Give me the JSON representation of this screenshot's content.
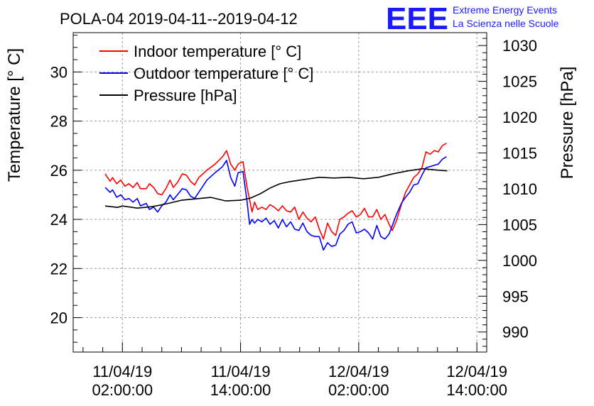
{
  "header": {
    "title": "POLA-04 2019-04-11--2019-04-12",
    "logo_text": "EEE",
    "logo_line1": "Extreme Energy Events",
    "logo_line2": "La Scienza nelle Scuole"
  },
  "colors": {
    "indoor": "#ff0000",
    "outdoor": "#0000ff",
    "pressure": "#000000",
    "logo": "#1a1aff"
  },
  "chart_data": {
    "type": "line",
    "title": "POLA-04 2019-04-11--2019-04-12",
    "ylabel": "Temperature [° C]",
    "y2label": "Pressure [hPa]",
    "xlabel": "",
    "grid": true,
    "legend_position": "top-left",
    "x_unit": "date-time",
    "xlim": [
      "2019-04-10 21:00",
      "2019-04-12 15:00"
    ],
    "ylim": [
      18.6,
      31.6
    ],
    "y2lim": [
      987.2,
      1031.8
    ],
    "y_ticks": [
      20,
      22,
      24,
      26,
      28,
      30
    ],
    "y2_ticks": [
      990,
      995,
      1000,
      1005,
      1010,
      1015,
      1020,
      1025,
      1030
    ],
    "x_ticks": [
      {
        "x": "2019-04-11 02:00",
        "line1": "11/04/19",
        "line2": "02:00:00"
      },
      {
        "x": "2019-04-11 14:00",
        "line1": "11/04/19",
        "line2": "14:00:00"
      },
      {
        "x": "2019-04-12 02:00",
        "line1": "12/04/19",
        "line2": "02:00:00"
      },
      {
        "x": "2019-04-12 14:00",
        "line1": "12/04/19",
        "line2": "14:00:00"
      }
    ],
    "series": [
      {
        "name": "Indoor temperature [° C]",
        "axis": "left",
        "color": "#ff0000",
        "points": [
          [
            "2019-04-11 00:15",
            25.85
          ],
          [
            "2019-04-11 00:45",
            25.55
          ],
          [
            "2019-04-11 01:00",
            25.7
          ],
          [
            "2019-04-11 01:25",
            25.45
          ],
          [
            "2019-04-11 01:50",
            25.6
          ],
          [
            "2019-04-11 02:15",
            25.35
          ],
          [
            "2019-04-11 02:40",
            25.45
          ],
          [
            "2019-04-11 03:05",
            25.3
          ],
          [
            "2019-04-11 03:30",
            25.5
          ],
          [
            "2019-04-11 03:50",
            25.25
          ],
          [
            "2019-04-11 04:25",
            25.25
          ],
          [
            "2019-04-11 04:45",
            25.45
          ],
          [
            "2019-04-11 05:10",
            25.3
          ],
          [
            "2019-04-11 05:35",
            25.05
          ],
          [
            "2019-04-11 06:00",
            25.0
          ],
          [
            "2019-04-11 06:25",
            25.25
          ],
          [
            "2019-04-11 06:50",
            25.6
          ],
          [
            "2019-04-11 07:10",
            25.3
          ],
          [
            "2019-04-11 07:35",
            25.5
          ],
          [
            "2019-04-11 08:05",
            25.85
          ],
          [
            "2019-04-11 08:30",
            25.8
          ],
          [
            "2019-04-11 08:55",
            25.55
          ],
          [
            "2019-04-11 09:20",
            25.4
          ],
          [
            "2019-04-11 09:45",
            25.7
          ],
          [
            "2019-04-11 10:10",
            25.85
          ],
          [
            "2019-04-11 10:35",
            26.0
          ],
          [
            "2019-04-11 11:25",
            26.25
          ],
          [
            "2019-04-11 12:10",
            26.55
          ],
          [
            "2019-04-11 12:35",
            26.8
          ],
          [
            "2019-04-11 13:00",
            26.25
          ],
          [
            "2019-04-11 13:25",
            26.0
          ],
          [
            "2019-04-11 13:45",
            26.25
          ],
          [
            "2019-04-11 14:15",
            26.35
          ],
          [
            "2019-04-11 14:40",
            25.3
          ],
          [
            "2019-04-11 14:55",
            24.8
          ],
          [
            "2019-04-11 15:10",
            24.3
          ],
          [
            "2019-04-11 15:25",
            24.7
          ],
          [
            "2019-04-11 15:45",
            24.4
          ],
          [
            "2019-04-11 16:10",
            24.5
          ],
          [
            "2019-04-11 16:35",
            24.4
          ],
          [
            "2019-04-11 17:00",
            24.6
          ],
          [
            "2019-04-11 17:25",
            24.5
          ],
          [
            "2019-04-11 17:50",
            24.35
          ],
          [
            "2019-04-11 18:15",
            24.55
          ],
          [
            "2019-04-11 18:40",
            24.35
          ],
          [
            "2019-04-11 19:05",
            24.3
          ],
          [
            "2019-04-11 19:30",
            24.5
          ],
          [
            "2019-04-11 19:55",
            24.0
          ],
          [
            "2019-04-11 20:20",
            24.3
          ],
          [
            "2019-04-11 20:45",
            24.05
          ],
          [
            "2019-04-11 21:10",
            23.9
          ],
          [
            "2019-04-11 21:35",
            24.1
          ],
          [
            "2019-04-11 22:00",
            23.6
          ],
          [
            "2019-04-11 22:25",
            23.2
          ],
          [
            "2019-04-11 22:50",
            23.85
          ],
          [
            "2019-04-11 23:15",
            23.5
          ],
          [
            "2019-04-11 23:40",
            23.35
          ],
          [
            "2019-04-12 00:05",
            24.0
          ],
          [
            "2019-04-12 00:30",
            24.1
          ],
          [
            "2019-04-12 00:55",
            24.25
          ],
          [
            "2019-04-12 01:20",
            24.35
          ],
          [
            "2019-04-12 01:45",
            24.1
          ],
          [
            "2019-04-12 02:10",
            24.2
          ],
          [
            "2019-04-12 02:35",
            24.45
          ],
          [
            "2019-04-12 03:00",
            24.1
          ],
          [
            "2019-04-12 03:25",
            24.1
          ],
          [
            "2019-04-12 03:50",
            24.4
          ],
          [
            "2019-04-12 04:15",
            24.0
          ],
          [
            "2019-04-12 04:40",
            24.2
          ],
          [
            "2019-04-12 05:05",
            23.8
          ],
          [
            "2019-04-12 05:25",
            23.55
          ],
          [
            "2019-04-12 05:50",
            23.95
          ],
          [
            "2019-04-12 06:20",
            24.6
          ],
          [
            "2019-04-12 06:45",
            25.1
          ],
          [
            "2019-04-12 07:10",
            25.4
          ],
          [
            "2019-04-12 07:35",
            25.7
          ],
          [
            "2019-04-12 08:00",
            25.85
          ],
          [
            "2019-04-12 08:25",
            26.1
          ],
          [
            "2019-04-12 08:50",
            26.75
          ],
          [
            "2019-04-12 09:15",
            26.65
          ],
          [
            "2019-04-12 09:40",
            26.8
          ],
          [
            "2019-04-12 10:05",
            26.75
          ],
          [
            "2019-04-12 10:30",
            27.0
          ],
          [
            "2019-04-12 10:55",
            27.1
          ]
        ]
      },
      {
        "name": "Outdoor temperature [° C]",
        "axis": "left",
        "color": "#0000ff",
        "points": [
          [
            "2019-04-11 00:15",
            25.3
          ],
          [
            "2019-04-11 00:45",
            25.1
          ],
          [
            "2019-04-11 01:00",
            25.2
          ],
          [
            "2019-04-11 01:25",
            24.9
          ],
          [
            "2019-04-11 01:50",
            25.0
          ],
          [
            "2019-04-11 02:15",
            24.8
          ],
          [
            "2019-04-11 02:40",
            24.85
          ],
          [
            "2019-04-11 03:05",
            24.7
          ],
          [
            "2019-04-11 03:30",
            24.85
          ],
          [
            "2019-04-11 03:50",
            24.55
          ],
          [
            "2019-04-11 04:25",
            24.65
          ],
          [
            "2019-04-11 04:45",
            24.4
          ],
          [
            "2019-04-11 05:10",
            24.5
          ],
          [
            "2019-04-11 05:35",
            24.3
          ],
          [
            "2019-04-11 06:00",
            24.55
          ],
          [
            "2019-04-11 06:25",
            24.7
          ],
          [
            "2019-04-11 06:50",
            25.0
          ],
          [
            "2019-04-11 07:10",
            24.8
          ],
          [
            "2019-04-11 07:35",
            25.0
          ],
          [
            "2019-04-11 08:05",
            25.25
          ],
          [
            "2019-04-11 08:30",
            25.2
          ],
          [
            "2019-04-11 08:55",
            24.95
          ],
          [
            "2019-04-11 09:20",
            24.85
          ],
          [
            "2019-04-11 09:45",
            25.1
          ],
          [
            "2019-04-11 10:10",
            25.35
          ],
          [
            "2019-04-11 10:35",
            25.6
          ],
          [
            "2019-04-11 11:25",
            25.9
          ],
          [
            "2019-04-11 12:10",
            26.15
          ],
          [
            "2019-04-11 12:35",
            26.4
          ],
          [
            "2019-04-11 13:00",
            25.7
          ],
          [
            "2019-04-11 13:25",
            25.35
          ],
          [
            "2019-04-11 13:45",
            25.9
          ],
          [
            "2019-04-11 14:15",
            25.95
          ],
          [
            "2019-04-11 14:40",
            24.7
          ],
          [
            "2019-04-11 14:55",
            23.8
          ],
          [
            "2019-04-11 15:10",
            24.0
          ],
          [
            "2019-04-11 15:25",
            23.85
          ],
          [
            "2019-04-11 15:45",
            24.0
          ],
          [
            "2019-04-11 16:10",
            23.9
          ],
          [
            "2019-04-11 16:35",
            24.05
          ],
          [
            "2019-04-11 17:00",
            23.8
          ],
          [
            "2019-04-11 17:25",
            23.95
          ],
          [
            "2019-04-11 17:50",
            23.65
          ],
          [
            "2019-04-11 18:15",
            24.0
          ],
          [
            "2019-04-11 18:40",
            23.7
          ],
          [
            "2019-04-11 19:05",
            23.9
          ],
          [
            "2019-04-11 19:30",
            23.6
          ],
          [
            "2019-04-11 19:55",
            23.55
          ],
          [
            "2019-04-11 20:20",
            23.85
          ],
          [
            "2019-04-11 20:45",
            23.5
          ],
          [
            "2019-04-11 21:10",
            23.35
          ],
          [
            "2019-04-11 21:35",
            23.3
          ],
          [
            "2019-04-11 22:00",
            23.3
          ],
          [
            "2019-04-11 22:25",
            22.75
          ],
          [
            "2019-04-11 22:50",
            23.05
          ],
          [
            "2019-04-11 23:15",
            22.9
          ],
          [
            "2019-04-11 23:40",
            22.95
          ],
          [
            "2019-04-12 00:05",
            23.4
          ],
          [
            "2019-04-12 00:30",
            23.55
          ],
          [
            "2019-04-12 00:55",
            23.8
          ],
          [
            "2019-04-12 01:20",
            23.9
          ],
          [
            "2019-04-12 01:45",
            23.45
          ],
          [
            "2019-04-12 02:10",
            23.5
          ],
          [
            "2019-04-12 02:35",
            23.6
          ],
          [
            "2019-04-12 03:00",
            23.45
          ],
          [
            "2019-04-12 03:25",
            23.2
          ],
          [
            "2019-04-12 03:50",
            23.75
          ],
          [
            "2019-04-12 04:15",
            23.3
          ],
          [
            "2019-04-12 04:40",
            23.2
          ],
          [
            "2019-04-12 05:05",
            23.4
          ],
          [
            "2019-04-12 05:25",
            23.75
          ],
          [
            "2019-04-12 05:50",
            24.2
          ],
          [
            "2019-04-12 06:20",
            24.65
          ],
          [
            "2019-04-12 06:45",
            24.9
          ],
          [
            "2019-04-12 07:10",
            25.1
          ],
          [
            "2019-04-12 07:35",
            25.4
          ],
          [
            "2019-04-12 08:00",
            25.45
          ],
          [
            "2019-04-12 08:25",
            25.8
          ],
          [
            "2019-04-12 08:50",
            26.1
          ],
          [
            "2019-04-12 09:15",
            26.15
          ],
          [
            "2019-04-12 09:40",
            26.2
          ],
          [
            "2019-04-12 10:05",
            26.25
          ],
          [
            "2019-04-12 10:30",
            26.45
          ],
          [
            "2019-04-12 10:55",
            26.55
          ]
        ]
      },
      {
        "name": "Pressure [hPa]",
        "axis": "right",
        "color": "#000000",
        "points": [
          [
            "2019-04-11 00:15",
            1007.6
          ],
          [
            "2019-04-11 01:30",
            1007.4
          ],
          [
            "2019-04-11 02:00",
            1007.6
          ],
          [
            "2019-04-11 03:30",
            1007.3
          ],
          [
            "2019-04-11 05:00",
            1007.5
          ],
          [
            "2019-04-11 06:30",
            1007.9
          ],
          [
            "2019-04-11 08:00",
            1008.4
          ],
          [
            "2019-04-11 09:30",
            1008.6
          ],
          [
            "2019-04-11 11:00",
            1008.8
          ],
          [
            "2019-04-11 12:30",
            1008.3
          ],
          [
            "2019-04-11 14:00",
            1008.4
          ],
          [
            "2019-04-11 15:00",
            1008.7
          ],
          [
            "2019-04-11 16:00",
            1009.3
          ],
          [
            "2019-04-11 17:00",
            1010.1
          ],
          [
            "2019-04-11 18:00",
            1010.7
          ],
          [
            "2019-04-11 19:00",
            1011.0
          ],
          [
            "2019-04-11 20:30",
            1011.3
          ],
          [
            "2019-04-11 22:00",
            1011.6
          ],
          [
            "2019-04-11 23:30",
            1011.5
          ],
          [
            "2019-04-12 01:00",
            1011.6
          ],
          [
            "2019-04-12 02:30",
            1011.4
          ],
          [
            "2019-04-12 04:00",
            1011.6
          ],
          [
            "2019-04-12 05:30",
            1012.1
          ],
          [
            "2019-04-12 07:00",
            1012.5
          ],
          [
            "2019-04-12 08:30",
            1012.8
          ],
          [
            "2019-04-12 10:00",
            1012.6
          ],
          [
            "2019-04-12 11:00",
            1012.5
          ]
        ]
      }
    ]
  }
}
